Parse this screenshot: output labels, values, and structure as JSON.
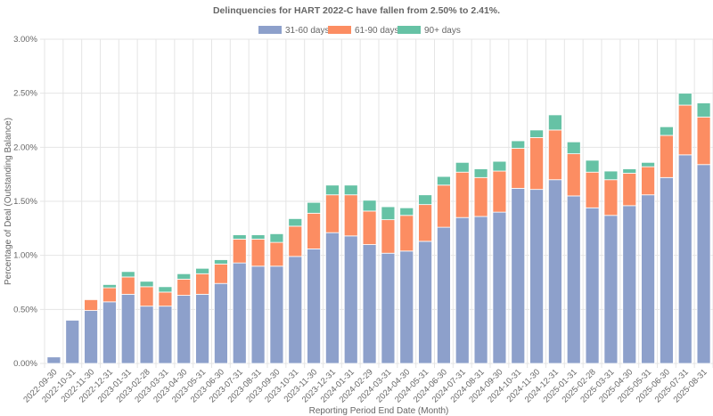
{
  "chart_data": {
    "type": "bar",
    "stacked": true,
    "title": "Delinquencies for HART 2022-C have fallen from 2.50% to 2.41%.",
    "xlabel": "Reporting Period End Date (Month)",
    "ylabel": "Percentage of Deal (Outstanding Balance)",
    "ylim": [
      0,
      3.0
    ],
    "yticks": [
      "0.00%",
      "0.50%",
      "1.00%",
      "1.50%",
      "2.00%",
      "2.50%",
      "3.00%"
    ],
    "ytick_values": [
      0,
      0.5,
      1.0,
      1.5,
      2.0,
      2.5,
      3.0
    ],
    "grid": true,
    "legend_position": "top",
    "categories": [
      "2022-09-30",
      "2022-10-31",
      "2022-11-30",
      "2022-12-31",
      "2023-01-31",
      "2023-02-28",
      "2023-03-31",
      "2023-04-30",
      "2023-05-31",
      "2023-06-30",
      "2023-07-31",
      "2023-08-31",
      "2023-09-30",
      "2023-10-31",
      "2023-11-30",
      "2023-12-31",
      "2024-01-31",
      "2024-02-29",
      "2024-03-31",
      "2024-04-30",
      "2024-05-31",
      "2024-06-30",
      "2024-07-31",
      "2024-08-31",
      "2024-09-30",
      "2024-10-31",
      "2024-11-30",
      "2024-12-31",
      "2025-01-31",
      "2025-02-28",
      "2025-03-31",
      "2025-04-30",
      "2025-05-31",
      "2025-06-30",
      "2025-07-31",
      "2025-08-31"
    ],
    "series": [
      {
        "name": "31-60 days",
        "color": "#8da0cb",
        "values": [
          0.06,
          0.4,
          0.49,
          0.57,
          0.64,
          0.53,
          0.53,
          0.63,
          0.64,
          0.74,
          0.93,
          0.9,
          0.9,
          0.99,
          1.06,
          1.21,
          1.18,
          1.1,
          1.02,
          1.04,
          1.13,
          1.26,
          1.35,
          1.36,
          1.4,
          1.62,
          1.61,
          1.7,
          1.55,
          1.44,
          1.37,
          1.46,
          1.56,
          1.72,
          1.93,
          1.84
        ]
      },
      {
        "name": "61-90 days",
        "color": "#fc8d62",
        "values": [
          0.0,
          0.0,
          0.1,
          0.13,
          0.16,
          0.18,
          0.13,
          0.15,
          0.19,
          0.18,
          0.22,
          0.25,
          0.22,
          0.28,
          0.33,
          0.35,
          0.38,
          0.31,
          0.31,
          0.33,
          0.34,
          0.39,
          0.42,
          0.36,
          0.38,
          0.37,
          0.48,
          0.46,
          0.39,
          0.33,
          0.33,
          0.3,
          0.26,
          0.39,
          0.46,
          0.44
        ]
      },
      {
        "name": "90+ days",
        "color": "#66c2a5",
        "values": [
          0.0,
          0.0,
          0.0,
          0.03,
          0.05,
          0.05,
          0.05,
          0.05,
          0.05,
          0.04,
          0.04,
          0.04,
          0.08,
          0.07,
          0.1,
          0.09,
          0.09,
          0.1,
          0.12,
          0.07,
          0.09,
          0.08,
          0.09,
          0.08,
          0.09,
          0.07,
          0.07,
          0.14,
          0.11,
          0.11,
          0.08,
          0.04,
          0.04,
          0.08,
          0.11,
          0.13
        ]
      }
    ]
  }
}
